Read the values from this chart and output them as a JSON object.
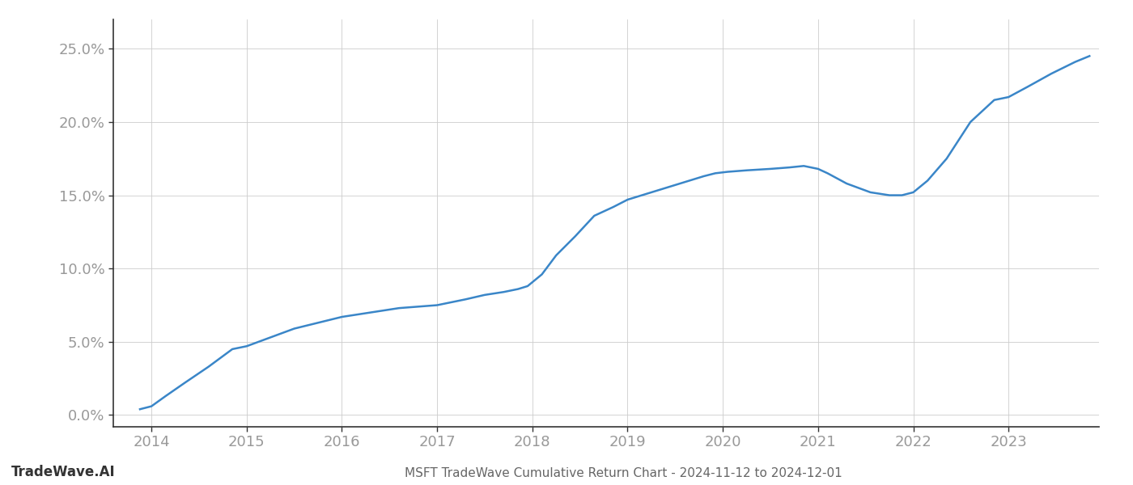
{
  "title": "MSFT TradeWave Cumulative Return Chart - 2024-11-12 to 2024-12-01",
  "watermark": "TradeWave.AI",
  "line_color": "#3a86c8",
  "background_color": "#ffffff",
  "grid_color": "#cccccc",
  "x_values": [
    2013.88,
    2014.0,
    2014.15,
    2014.35,
    2014.6,
    2014.85,
    2015.0,
    2015.25,
    2015.5,
    2015.75,
    2016.0,
    2016.2,
    2016.4,
    2016.6,
    2016.8,
    2017.0,
    2017.15,
    2017.3,
    2017.5,
    2017.7,
    2017.85,
    2017.95,
    2018.1,
    2018.25,
    2018.45,
    2018.65,
    2018.85,
    2019.0,
    2019.2,
    2019.4,
    2019.6,
    2019.8,
    2019.92,
    2020.05,
    2020.25,
    2020.5,
    2020.7,
    2020.85,
    2021.0,
    2021.1,
    2021.3,
    2021.55,
    2021.75,
    2021.88,
    2022.0,
    2022.15,
    2022.35,
    2022.6,
    2022.85,
    2023.0,
    2023.2,
    2023.45,
    2023.7,
    2023.85
  ],
  "y_values": [
    0.004,
    0.006,
    0.013,
    0.022,
    0.033,
    0.045,
    0.047,
    0.053,
    0.059,
    0.063,
    0.067,
    0.069,
    0.071,
    0.073,
    0.074,
    0.075,
    0.077,
    0.079,
    0.082,
    0.084,
    0.086,
    0.088,
    0.096,
    0.109,
    0.122,
    0.136,
    0.142,
    0.147,
    0.151,
    0.155,
    0.159,
    0.163,
    0.165,
    0.166,
    0.167,
    0.168,
    0.169,
    0.17,
    0.168,
    0.165,
    0.158,
    0.152,
    0.15,
    0.15,
    0.152,
    0.16,
    0.175,
    0.2,
    0.215,
    0.217,
    0.224,
    0.233,
    0.241,
    0.245
  ],
  "xlim": [
    2013.6,
    2023.95
  ],
  "ylim": [
    -0.008,
    0.27
  ],
  "yticks": [
    0.0,
    0.05,
    0.1,
    0.15,
    0.2,
    0.25
  ],
  "xticks": [
    2014,
    2015,
    2016,
    2017,
    2018,
    2019,
    2020,
    2021,
    2022,
    2023
  ],
  "tick_label_fontsize": 13,
  "title_fontsize": 11,
  "watermark_fontsize": 12,
  "tick_label_color": "#999999",
  "title_color": "#666666",
  "watermark_color": "#333333",
  "linewidth": 1.8,
  "spine_color": "#333333",
  "grid_linewidth": 0.6
}
